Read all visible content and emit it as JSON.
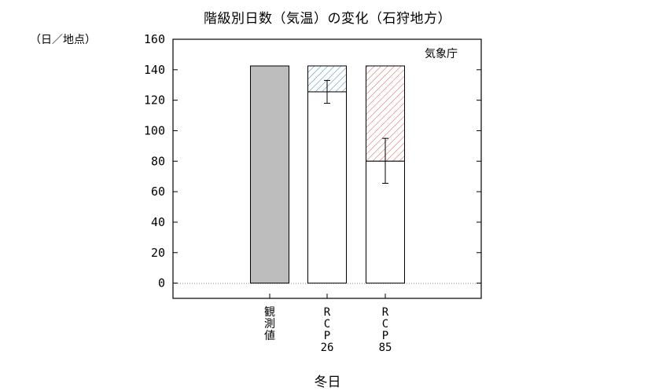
{
  "header": {
    "title": "階級別日数（気温）の変化（石狩地方）",
    "unit_label": "（日／地点）"
  },
  "chart_data": {
    "type": "bar",
    "title": "階級別日数（気温）の変化（石狩地方）",
    "xlabel": "冬日",
    "ylabel": "（日／地点）",
    "ylim": [
      -10,
      160
    ],
    "yticks": [
      0,
      20,
      40,
      60,
      80,
      100,
      120,
      140,
      160
    ],
    "source_label": "気象庁",
    "categories": [
      "観測値",
      "RCP26",
      "RCP85"
    ],
    "category_labels": [
      [
        "観",
        "測",
        "値"
      ],
      [
        "R",
        "C",
        "P",
        "26"
      ],
      [
        "R",
        "C",
        "P",
        "85"
      ]
    ],
    "bars": [
      {
        "category": "観測値",
        "base": 142.5,
        "top": 142.5,
        "style": "observed"
      },
      {
        "category": "RCP26",
        "base": 142.5,
        "top": 125.5,
        "error": [
          118,
          133
        ],
        "style": "rcp26"
      },
      {
        "category": "RCP85",
        "base": 142.5,
        "top": 80,
        "error": [
          65.5,
          95
        ],
        "style": "rcp85"
      }
    ],
    "colors": {
      "observed": "#bdbdbd",
      "rcp26": "#4a8fb5",
      "rcp85": "#d0574a",
      "frame": "#000000"
    },
    "grid": false
  }
}
